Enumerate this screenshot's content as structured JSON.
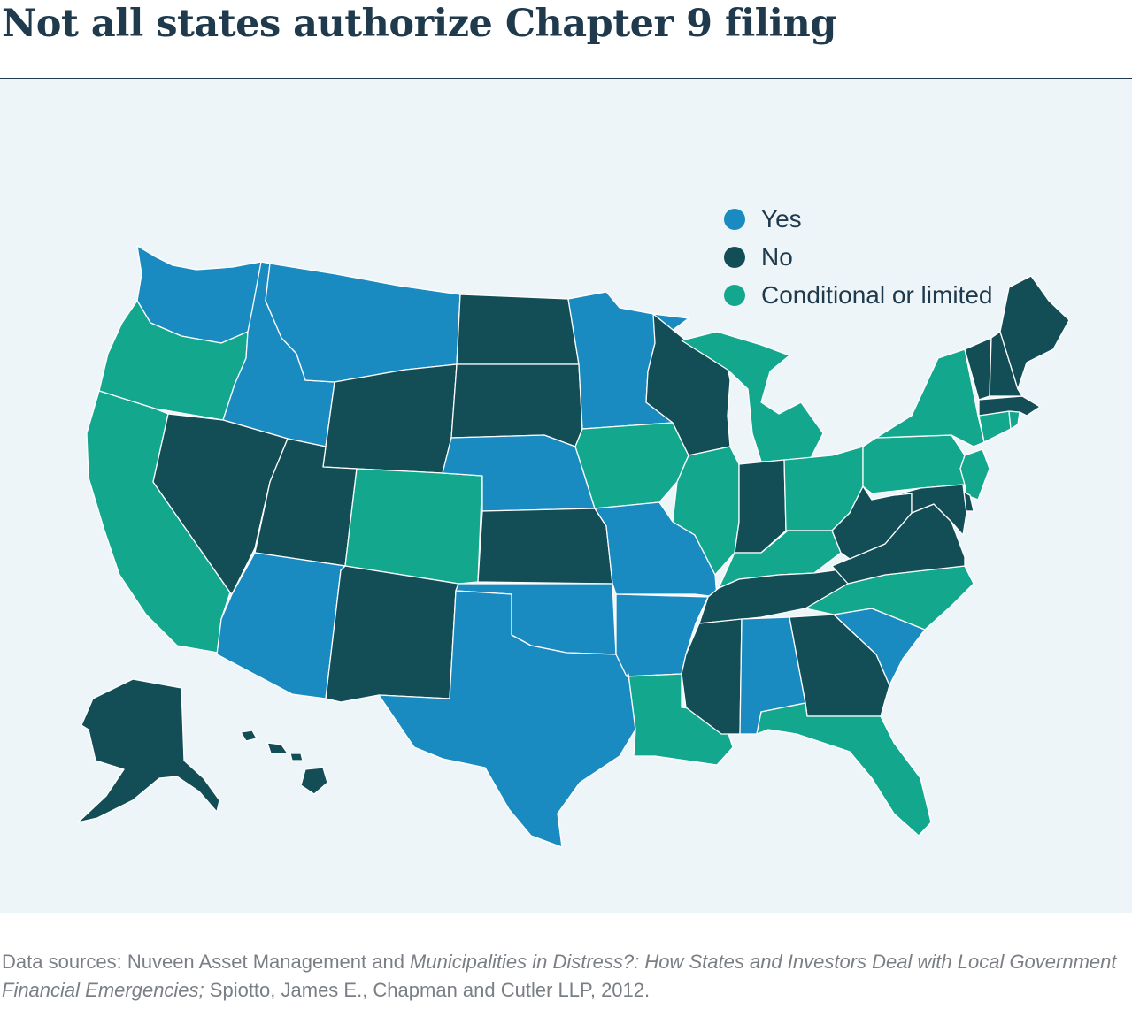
{
  "title": "Not all states authorize Chapter 9 filing",
  "legend": [
    {
      "key": "yes",
      "label": "Yes",
      "color": "#1a8bc0"
    },
    {
      "key": "no",
      "label": "No",
      "color": "#134e57"
    },
    {
      "key": "conditional",
      "label": "Conditional or limited",
      "color": "#13a88e"
    }
  ],
  "states": {
    "WA": "yes",
    "OR": "conditional",
    "CA": "conditional",
    "ID": "yes",
    "NV": "no",
    "MT": "yes",
    "WY": "no",
    "UT": "no",
    "AZ": "yes",
    "CO": "conditional",
    "NM": "no",
    "ND": "no",
    "SD": "no",
    "NE": "yes",
    "KS": "no",
    "OK": "yes",
    "TX": "yes",
    "MN": "yes",
    "IA": "conditional",
    "MO": "yes",
    "AR": "yes",
    "LA": "conditional",
    "WI": "no",
    "IL": "conditional",
    "MI": "conditional",
    "IN": "no",
    "OH": "conditional",
    "KY": "conditional",
    "TN": "no",
    "MS": "no",
    "AL": "yes",
    "GA": "no",
    "FL": "conditional",
    "SC": "yes",
    "NC": "conditional",
    "VA": "no",
    "WV": "no",
    "PA": "conditional",
    "NY": "conditional",
    "NJ": "conditional",
    "DE": "no",
    "MD": "no",
    "CT": "conditional",
    "RI": "conditional",
    "MA": "no",
    "VT": "no",
    "NH": "no",
    "ME": "no",
    "AK": "no",
    "HI": "no"
  },
  "source": {
    "prefix": "Data sources: Nuveen Asset Management and ",
    "italic_title": "Municipalities in Distress?: How States and Investors Deal with Local Government Financial Emergencies;",
    "suffix": " Spiotto, James E., Chapman and Cutler LLP, 2012."
  }
}
